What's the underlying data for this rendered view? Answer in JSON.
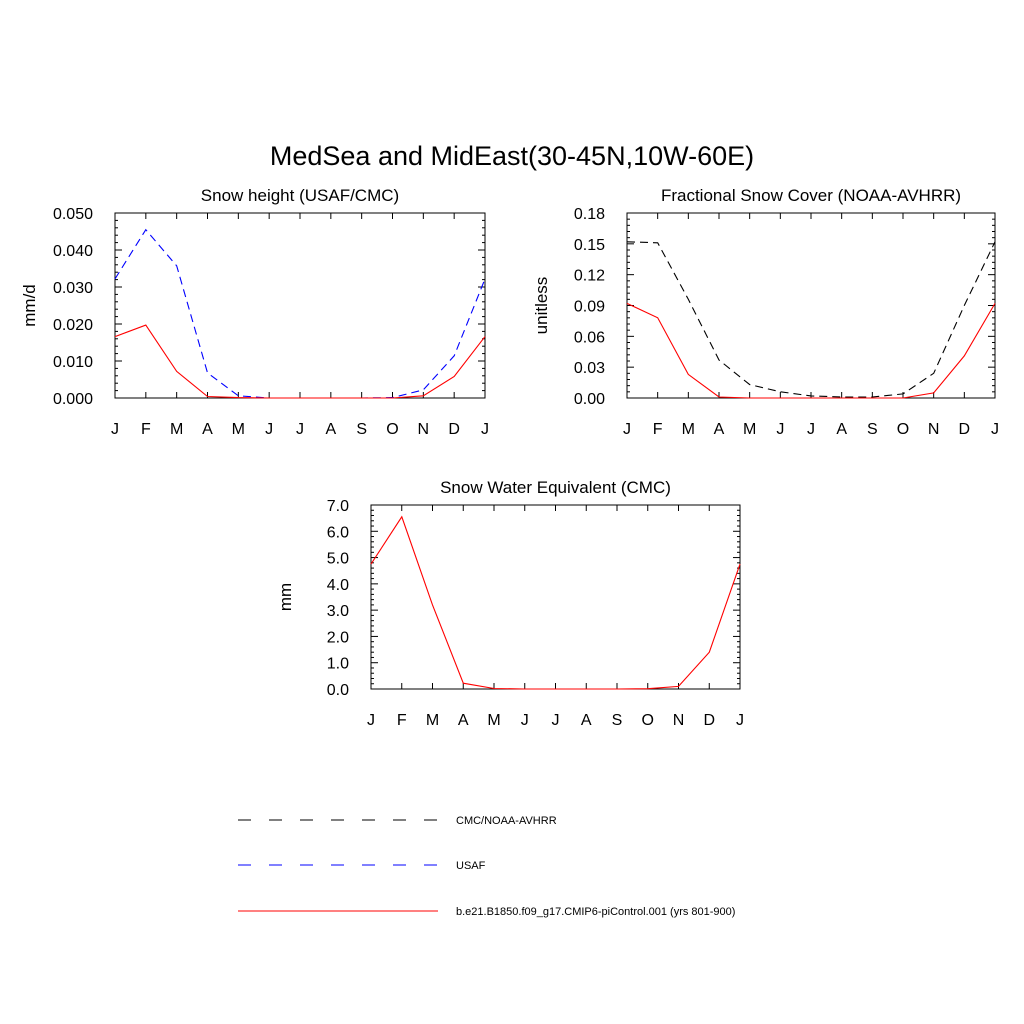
{
  "figure": {
    "title": "MedSea and MidEast(30-45N,10W-60E)"
  },
  "chart_data": [
    {
      "type": "line",
      "title": "Snow height (USAF/CMC)",
      "xlabel": "",
      "ylabel": "mm/d",
      "x": [
        "J",
        "F",
        "M",
        "A",
        "M",
        "J",
        "J",
        "A",
        "S",
        "O",
        "N",
        "D",
        "J"
      ],
      "ylim": [
        0,
        0.05
      ],
      "yticks": [
        "0.000",
        "0.010",
        "0.020",
        "0.030",
        "0.040",
        "0.050"
      ],
      "grid": false,
      "series": [
        {
          "name": "USAF",
          "color": "#0000ff",
          "dash": "dashed",
          "values": [
            0.0322,
            0.0455,
            0.0357,
            0.0068,
            0.0006,
            0.0,
            0.0,
            0.0,
            0.0,
            0.0001,
            0.0022,
            0.0114,
            0.0322
          ]
        },
        {
          "name": "b.e21.B1850.f09_g17.CMIP6-piControl.001 (yrs 801-900)",
          "color": "#ff0000",
          "dash": "solid",
          "values": [
            0.0166,
            0.0197,
            0.0072,
            0.0004,
            0.0001,
            0.0,
            0.0,
            0.0,
            0.0,
            0.0,
            0.0006,
            0.0058,
            0.0166
          ]
        }
      ]
    },
    {
      "type": "line",
      "title": "Fractional Snow Cover (NOAA-AVHRR)",
      "xlabel": "",
      "ylabel": "unitless",
      "x": [
        "J",
        "F",
        "M",
        "A",
        "M",
        "J",
        "J",
        "A",
        "S",
        "O",
        "N",
        "D",
        "J"
      ],
      "ylim": [
        0,
        0.18
      ],
      "yticks": [
        "0.00",
        "0.03",
        "0.06",
        "0.09",
        "0.12",
        "0.15",
        "0.18"
      ],
      "grid": false,
      "series": [
        {
          "name": "CMC/NOAA-AVHRR",
          "color": "#000000",
          "dash": "dashed",
          "values": [
            0.152,
            0.151,
            0.096,
            0.037,
            0.013,
            0.006,
            0.002,
            0.001,
            0.001,
            0.004,
            0.024,
            0.09,
            0.152
          ]
        },
        {
          "name": "b.e21.B1850.f09_g17.CMIP6-piControl.001 (yrs 801-900)",
          "color": "#ff0000",
          "dash": "solid",
          "values": [
            0.092,
            0.078,
            0.023,
            0.001,
            0.0,
            0.0,
            0.0,
            0.0,
            0.0,
            0.0,
            0.005,
            0.041,
            0.092
          ]
        }
      ]
    },
    {
      "type": "line",
      "title": "Snow Water Equivalent (CMC)",
      "xlabel": "",
      "ylabel": "mm",
      "x": [
        "J",
        "F",
        "M",
        "A",
        "M",
        "J",
        "J",
        "A",
        "S",
        "O",
        "N",
        "D",
        "J"
      ],
      "ylim": [
        0,
        7.0
      ],
      "yticks": [
        "0.0",
        "1.0",
        "2.0",
        "3.0",
        "4.0",
        "5.0",
        "6.0",
        "7.0"
      ],
      "grid": false,
      "series": [
        {
          "name": "CMC/NOAA-AVHRR",
          "color": "#000000",
          "dash": "dashed",
          "values": [
            0,
            0,
            0,
            0,
            0,
            0,
            0,
            0,
            0,
            0,
            0,
            0,
            0
          ]
        },
        {
          "name": "b.e21.B1850.f09_g17.CMIP6-piControl.001 (yrs 801-900)",
          "color": "#ff0000",
          "dash": "solid",
          "values": [
            4.75,
            6.55,
            3.2,
            0.22,
            0.02,
            0.0,
            0.0,
            0.0,
            0.0,
            0.01,
            0.1,
            1.4,
            4.75
          ]
        }
      ]
    }
  ],
  "legend": {
    "placement": "bottom",
    "entries": [
      {
        "label": "CMC/NOAA-AVHRR",
        "color": "#000000",
        "dash": "dashed"
      },
      {
        "label": "USAF",
        "color": "#0000ff",
        "dash": "dashed"
      },
      {
        "label": "b.e21.B1850.f09_g17.CMIP6-piControl.001 (yrs 801-900)",
        "color": "#ff0000",
        "dash": "solid"
      }
    ]
  }
}
